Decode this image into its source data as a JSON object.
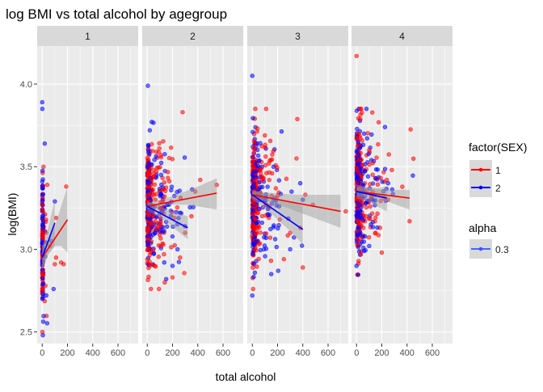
{
  "chart_data": {
    "type": "scatter",
    "title": "log BMI vs total alcohol by agegroup",
    "xlabel": "total alcohol",
    "ylabel": "log(BMI)",
    "facet_labels": [
      "1",
      "2",
      "3",
      "4"
    ],
    "xlim": [
      -40,
      760
    ],
    "ylim": [
      2.43,
      4.23
    ],
    "x_ticks": [
      0,
      200,
      400,
      600
    ],
    "x_tick_labels": [
      "0",
      "200",
      "400",
      "600"
    ],
    "y_ticks": [
      2.5,
      3.0,
      3.5,
      4.0
    ],
    "y_tick_labels": [
      "2.5",
      "3.0",
      "3.5",
      "4.0"
    ],
    "grid": true,
    "point_alpha": 0.3,
    "colors": {
      "sex_1": "#ff0000",
      "sex_2": "#0000ff",
      "panel_bg": "#ebebeb",
      "strip_bg": "#d9d9d9",
      "grid": "#ffffff",
      "ribbon": "#999999"
    },
    "legend": {
      "placement": "right",
      "sex_title": "factor(SEX)",
      "sex_entries": [
        "1",
        "2"
      ],
      "alpha_title": "alpha",
      "alpha_entries": [
        "0.3"
      ]
    },
    "facets": [
      {
        "label": "1",
        "fits": [
          {
            "sex": "1",
            "x": [
              0,
              200
            ],
            "y": [
              2.95,
              3.18
            ],
            "ci_x": [
              0,
              50,
              100,
              150,
              200
            ],
            "ci_lo": [
              2.88,
              2.97,
              3.02,
              3.02,
              2.98
            ],
            "ci_hi": [
              3.02,
              3.06,
              3.14,
              3.26,
              3.38
            ]
          },
          {
            "sex": "2",
            "x": [
              0,
              100
            ],
            "y": [
              2.95,
              3.16
            ],
            "ci_x": [
              0,
              50,
              100
            ],
            "ci_lo": [
              2.88,
              2.98,
              3.02
            ],
            "ci_hi": [
              3.02,
              3.14,
              3.3
            ]
          }
        ],
        "outliers": {
          "sex_1": [
            [
              30,
              3.1
            ],
            [
              60,
              3.02
            ],
            [
              100,
              2.91
            ],
            [
              110,
              2.95
            ],
            [
              150,
              2.92
            ],
            [
              170,
              2.91
            ],
            [
              190,
              3.38
            ],
            [
              110,
              3.19
            ],
            [
              40,
              3.39
            ]
          ],
          "sex_2": [
            [
              0,
              3.89
            ],
            [
              5,
              2.48
            ],
            [
              100,
              3.29
            ],
            [
              90,
              2.76
            ],
            [
              70,
              3.05
            ],
            [
              20,
              3.64
            ]
          ]
        }
      },
      {
        "label": "2",
        "fits": [
          {
            "sex": "1",
            "x": [
              0,
              550
            ],
            "y": [
              3.26,
              3.34
            ],
            "ci_x": [
              0,
              100,
              200,
              300,
              400,
              550
            ],
            "ci_lo": [
              3.24,
              3.26,
              3.27,
              3.27,
              3.26,
              3.24
            ],
            "ci_hi": [
              3.28,
              3.3,
              3.32,
              3.35,
              3.38,
              3.43
            ]
          },
          {
            "sex": "2",
            "x": [
              0,
              320
            ],
            "y": [
              3.26,
              3.13
            ],
            "ci_x": [
              0,
              80,
              160,
              240,
              320
            ],
            "ci_lo": [
              3.23,
              3.2,
              3.16,
              3.11,
              3.06
            ],
            "ci_hi": [
              3.29,
              3.27,
              3.24,
              3.22,
              3.2
            ]
          }
        ],
        "outliers": {
          "sex_1": [
            [
              280,
              3.83
            ],
            [
              550,
              3.39
            ],
            [
              420,
              3.42
            ],
            [
              300,
              3.1
            ],
            [
              350,
              3.2
            ],
            [
              260,
              2.95
            ],
            [
              200,
              2.83
            ],
            [
              380,
              3.35
            ]
          ],
          "sex_2": [
            [
              5,
              3.99
            ],
            [
              300,
              3.14
            ],
            [
              240,
              3.0
            ],
            [
              200,
              2.9
            ],
            [
              150,
              2.82
            ]
          ]
        }
      },
      {
        "label": "3",
        "fits": [
          {
            "sex": "1",
            "x": [
              0,
              700
            ],
            "y": [
              3.33,
              3.23
            ],
            "ci_x": [
              0,
              175,
              350,
              525,
              700
            ],
            "ci_lo": [
              3.31,
              3.28,
              3.23,
              3.18,
              3.13
            ],
            "ci_hi": [
              3.35,
              3.34,
              3.33,
              3.33,
              3.33
            ]
          },
          {
            "sex": "2",
            "x": [
              0,
              400
            ],
            "y": [
              3.33,
              3.12
            ],
            "ci_x": [
              0,
              100,
              200,
              300,
              400
            ],
            "ci_lo": [
              3.3,
              3.25,
              3.18,
              3.11,
              3.03
            ],
            "ci_hi": [
              3.36,
              3.34,
              3.31,
              3.29,
              3.26
            ]
          }
        ],
        "outliers": {
          "sex_1": [
            [
              740,
              3.23
            ],
            [
              480,
              3.27
            ],
            [
              400,
              2.89
            ],
            [
              380,
              3.13
            ],
            [
              300,
              3.1
            ],
            [
              250,
              2.94
            ],
            [
              420,
              3.33
            ],
            [
              350,
              3.55
            ]
          ],
          "sex_2": [
            [
              0,
              4.05
            ],
            [
              0,
              2.72
            ],
            [
              400,
              3.3
            ],
            [
              380,
              3.4
            ],
            [
              300,
              3.0
            ],
            [
              150,
              2.85
            ]
          ]
        }
      },
      {
        "label": "4",
        "fits": [
          {
            "sex": "1",
            "x": [
              0,
              420
            ],
            "y": [
              3.35,
              3.31
            ],
            "ci_x": [
              0,
              105,
              210,
              315,
              420
            ],
            "ci_lo": [
              3.32,
              3.32,
              3.3,
              3.27,
              3.24
            ],
            "ci_hi": [
              3.38,
              3.37,
              3.36,
              3.36,
              3.36
            ]
          },
          {
            "sex": "2",
            "x": [
              0,
              240
            ],
            "y": [
              3.35,
              3.31
            ],
            "ci_x": [
              0,
              80,
              160,
              240
            ],
            "ci_lo": [
              3.31,
              3.29,
              3.26,
              3.23
            ],
            "ci_hi": [
              3.39,
              3.38,
              3.37,
              3.38
            ]
          }
        ],
        "outliers": {
          "sex_1": [
            [
              0,
              4.17
            ],
            [
              420,
              3.17
            ],
            [
              240,
              3.42
            ],
            [
              280,
              3.48
            ],
            [
              200,
              2.98
            ],
            [
              250,
              3.3
            ],
            [
              150,
              3.1
            ],
            [
              100,
              3.6
            ]
          ],
          "sex_2": [
            [
              0,
              2.9
            ],
            [
              250,
              3.4
            ],
            [
              100,
              3.02
            ],
            [
              60,
              3.7
            ]
          ]
        }
      }
    ]
  }
}
